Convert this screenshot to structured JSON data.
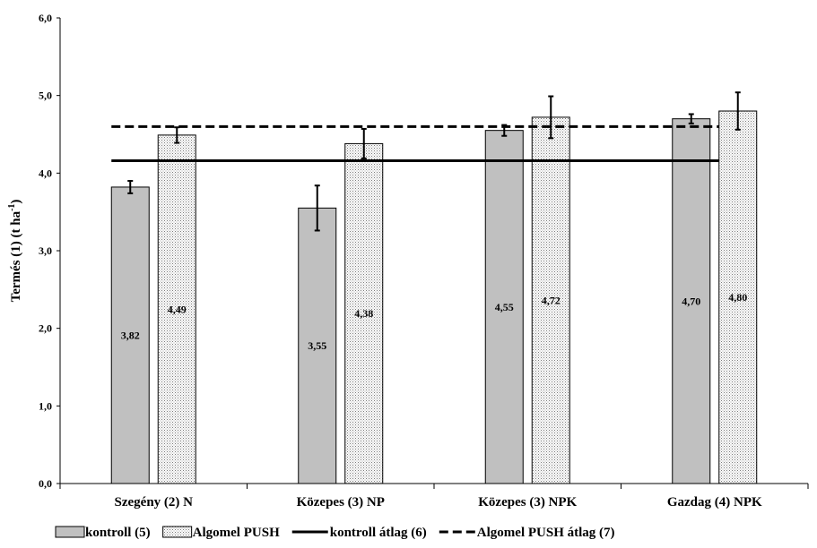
{
  "chart_data": {
    "type": "bar",
    "categories": [
      "Szegény (2) N",
      "Közepes (3) NP",
      "Közepes (3) NPK",
      "Gazdag (4) NPK"
    ],
    "series": [
      {
        "name": "kontroll (5)",
        "values": [
          3.82,
          3.55,
          4.55,
          4.7
        ],
        "labels": [
          "3,82",
          "3,55",
          "4,55",
          "4,70"
        ],
        "error": [
          0.08,
          0.29,
          0.07,
          0.06
        ],
        "color": "#c0c0c0",
        "pattern": "solid"
      },
      {
        "name": "Algomel PUSH",
        "values": [
          4.49,
          4.38,
          4.72,
          4.8
        ],
        "labels": [
          "4,49",
          "4,38",
          "4,72",
          "4,80"
        ],
        "error": [
          0.1,
          0.19,
          0.27,
          0.24
        ],
        "color": "#ffffff",
        "pattern": "dotted"
      }
    ],
    "reference_lines": [
      {
        "name": "kontroll átlag (6)",
        "value": 4.16,
        "style": "solid"
      },
      {
        "name": "Algomel PUSH átlag (7)",
        "value": 4.6,
        "style": "dashed"
      }
    ],
    "ylabel_main": "Termés (1) (t ha",
    "ylabel_sup": "-1",
    "ylabel_end": ")",
    "xlabel": "",
    "ylim": [
      0,
      6
    ],
    "yticks": [
      {
        "value": 0,
        "label": "0,0"
      },
      {
        "value": 1,
        "label": "1,0"
      },
      {
        "value": 2,
        "label": "2,0"
      },
      {
        "value": 3,
        "label": "3,0"
      },
      {
        "value": 4,
        "label": "4,0"
      },
      {
        "value": 5,
        "label": "5,0"
      },
      {
        "value": 6,
        "label": "6,0"
      }
    ],
    "grid": false,
    "legend_position": "bottom"
  }
}
